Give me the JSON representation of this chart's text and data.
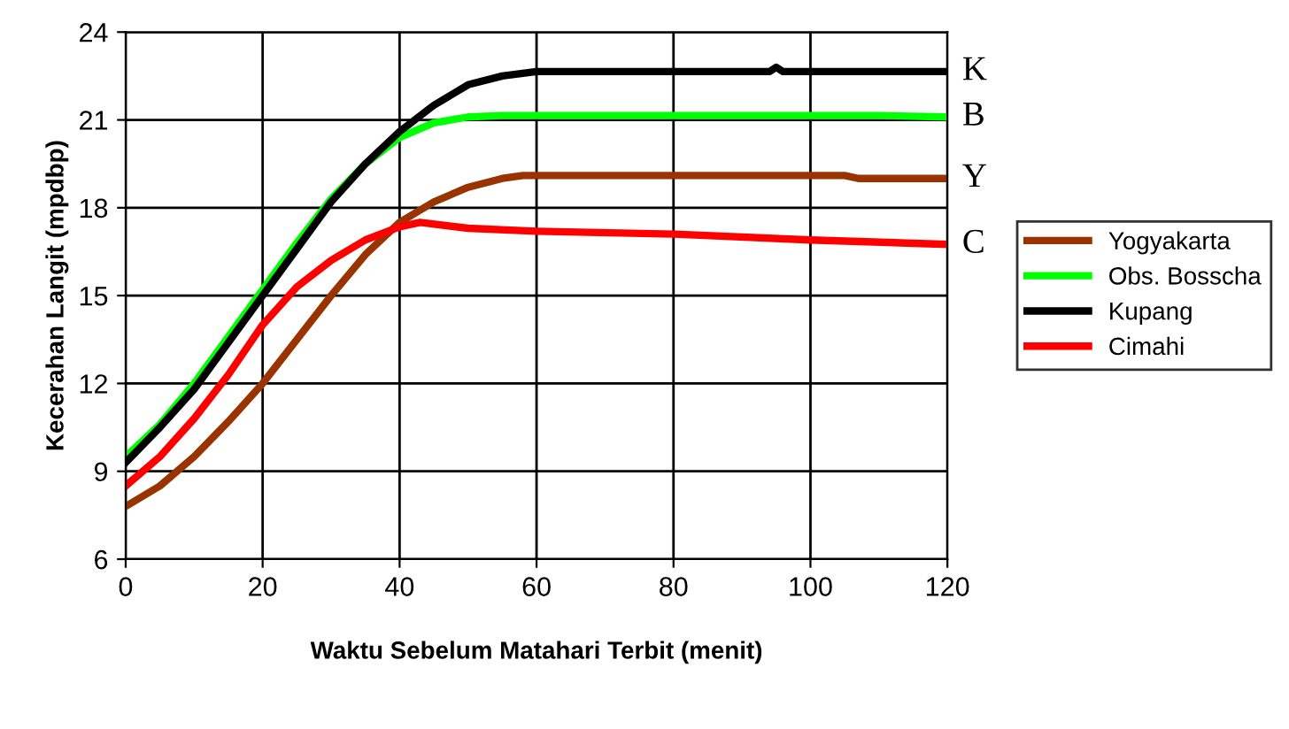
{
  "chart_data": {
    "type": "line",
    "xlabel": "Waktu Sebelum Matahari Terbit (menit)",
    "ylabel": "Kecerahan Langit (mpdbp)",
    "xlim": [
      0,
      120
    ],
    "xticks": [
      0,
      20,
      40,
      60,
      80,
      100,
      120
    ],
    "ylim": [
      6,
      24
    ],
    "yticks": [
      6,
      9,
      12,
      15,
      18,
      21,
      24
    ],
    "grid": true,
    "legend": "right",
    "marker": "none",
    "line_style": "solid",
    "series": [
      {
        "name": "Yogyakarta",
        "color": "#993300",
        "x": [
          0,
          5,
          10,
          15,
          20,
          25,
          30,
          35,
          40,
          45,
          50,
          55,
          58,
          105,
          107,
          120
        ],
        "values": [
          7.8,
          8.5,
          9.5,
          10.7,
          12.0,
          13.5,
          15.0,
          16.4,
          17.5,
          18.2,
          18.7,
          19.0,
          19.1,
          19.1,
          19.0,
          19.0
        ]
      },
      {
        "name": "Obs. Bosscha",
        "color": "#00ff00",
        "x": [
          0,
          5,
          10,
          15,
          20,
          25,
          30,
          35,
          40,
          45,
          50,
          55,
          60,
          110,
          120
        ],
        "values": [
          9.5,
          10.6,
          12.0,
          13.6,
          15.2,
          16.8,
          18.3,
          19.5,
          20.4,
          20.9,
          21.1,
          21.15,
          21.15,
          21.15,
          21.1
        ]
      },
      {
        "name": "Kupang",
        "color": "#000000",
        "x": [
          0,
          5,
          10,
          15,
          20,
          25,
          30,
          35,
          40,
          45,
          50,
          55,
          60,
          94,
          95,
          96,
          120
        ],
        "values": [
          9.3,
          10.5,
          11.8,
          13.4,
          15.0,
          16.6,
          18.2,
          19.5,
          20.6,
          21.5,
          22.2,
          22.5,
          22.65,
          22.65,
          22.8,
          22.65,
          22.65
        ]
      },
      {
        "name": "Cimahi",
        "color": "#ff0000",
        "x": [
          0,
          5,
          10,
          15,
          20,
          25,
          30,
          35,
          40,
          43,
          50,
          60,
          80,
          100,
          120
        ],
        "values": [
          8.5,
          9.5,
          10.8,
          12.3,
          14.0,
          15.3,
          16.2,
          16.9,
          17.35,
          17.5,
          17.3,
          17.2,
          17.1,
          16.9,
          16.75
        ]
      }
    ],
    "annotations": [
      "K",
      "B",
      "Y",
      "C"
    ]
  }
}
